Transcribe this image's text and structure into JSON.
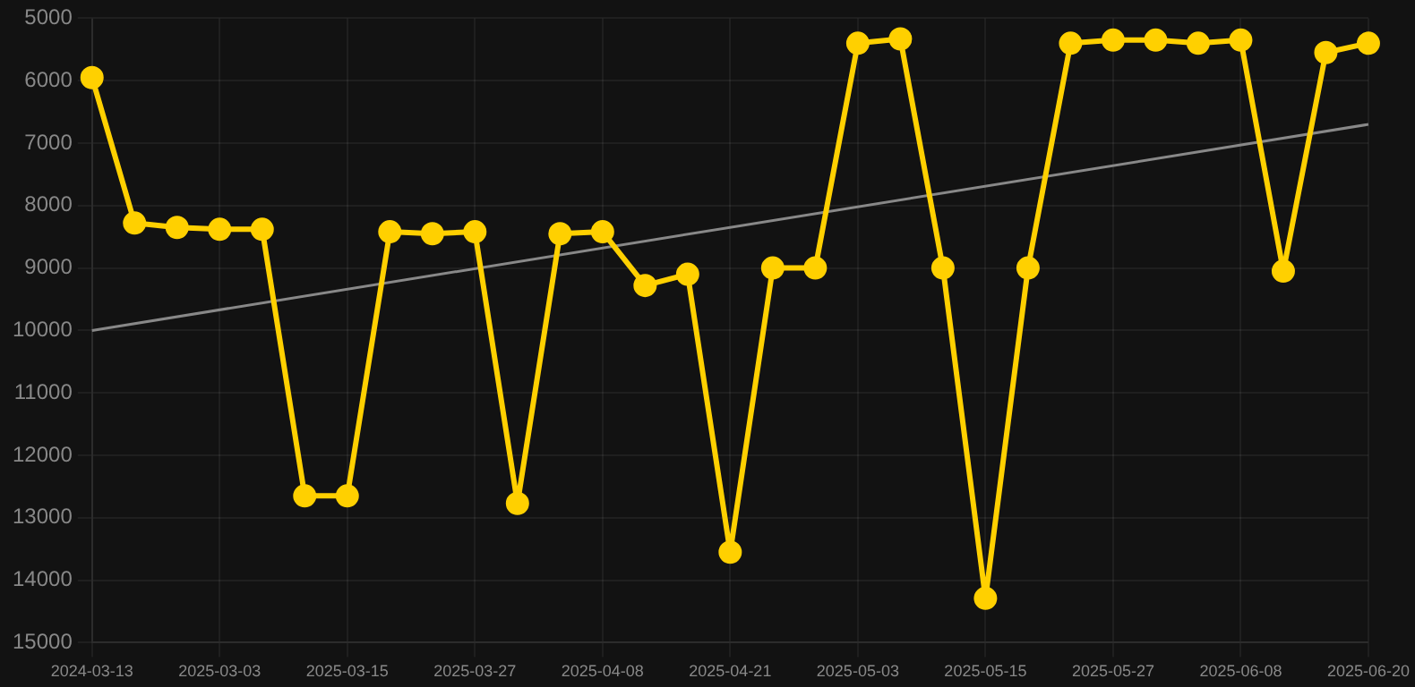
{
  "chart_data": {
    "type": "line",
    "categories": [
      "2024-03-13",
      null,
      null,
      "2025-03-03",
      null,
      null,
      "2025-03-15",
      null,
      null,
      "2025-03-27",
      null,
      null,
      "2025-04-08",
      null,
      null,
      "2025-04-21",
      null,
      null,
      "2025-05-03",
      null,
      null,
      "2025-05-15",
      null,
      null,
      "2025-05-27",
      null,
      null,
      "2025-06-08",
      null,
      null,
      "2025-06-20"
    ],
    "series": [
      {
        "color": "#ffd000",
        "marker": "circle",
        "values": [
          5950,
          8280,
          8350,
          8380,
          8380,
          12650,
          12650,
          8420,
          8450,
          8420,
          12770,
          8450,
          8420,
          9280,
          9100,
          13550,
          9000,
          9000,
          5400,
          5330,
          9000,
          14290,
          9000,
          5400,
          5350,
          5350,
          5400,
          5350,
          9050,
          5550,
          5400
        ]
      },
      {
        "color": "#888888",
        "marker": "none",
        "values": [
          10000,
          null,
          null,
          null,
          null,
          null,
          null,
          null,
          null,
          null,
          null,
          null,
          null,
          null,
          null,
          null,
          null,
          null,
          null,
          null,
          null,
          null,
          null,
          null,
          null,
          null,
          null,
          null,
          null,
          null,
          6700
        ]
      }
    ],
    "ylim": [
      15000,
      5000
    ],
    "yticks": [
      5000,
      6000,
      7000,
      8000,
      9000,
      10000,
      11000,
      12000,
      13000,
      14000,
      15000
    ],
    "grid": true
  }
}
